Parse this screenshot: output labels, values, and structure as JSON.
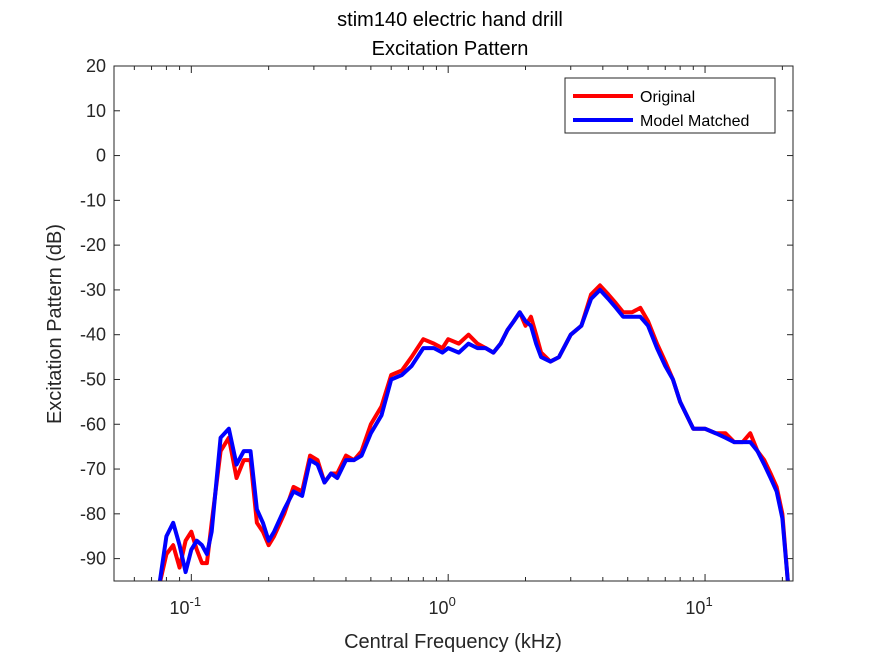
{
  "chart_data": {
    "type": "line",
    "title": "stim140 electric hand drill",
    "subtitle": "Excitation Pattern",
    "xlabel": "Central Frequency (kHz)",
    "ylabel": "Excitation Pattern (dB)",
    "xscale": "log",
    "xlim": [
      0.05,
      22
    ],
    "ylim": [
      -95,
      20
    ],
    "yticks": [
      20,
      10,
      0,
      -10,
      -20,
      -30,
      -40,
      -50,
      -60,
      -70,
      -80,
      -90
    ],
    "xticks": [
      {
        "value": 0.1,
        "base": "10",
        "exp": "-1"
      },
      {
        "value": 1,
        "base": "10",
        "exp": "0"
      },
      {
        "value": 10,
        "base": "10",
        "exp": "1"
      }
    ],
    "grid": false,
    "legend_position": "top-right",
    "series": [
      {
        "name": "Original",
        "color": "#ff0000",
        "x": [
          0.075,
          0.08,
          0.085,
          0.09,
          0.095,
          0.1,
          0.105,
          0.11,
          0.115,
          0.12,
          0.13,
          0.14,
          0.15,
          0.16,
          0.17,
          0.18,
          0.19,
          0.2,
          0.21,
          0.23,
          0.25,
          0.27,
          0.29,
          0.31,
          0.33,
          0.35,
          0.37,
          0.4,
          0.43,
          0.46,
          0.5,
          0.55,
          0.6,
          0.66,
          0.72,
          0.8,
          0.88,
          0.95,
          1.0,
          1.1,
          1.2,
          1.3,
          1.4,
          1.5,
          1.6,
          1.7,
          1.8,
          1.9,
          2.0,
          2.1,
          2.2,
          2.3,
          2.5,
          2.7,
          3.0,
          3.3,
          3.6,
          3.9,
          4.2,
          4.5,
          4.8,
          5.2,
          5.6,
          6.0,
          6.5,
          7.0,
          7.5,
          8.0,
          9.0,
          10.0,
          11.0,
          12.0,
          13.0,
          14.0,
          15.0,
          16.0,
          17.0,
          18.0,
          19.0,
          20.0,
          21.0
        ],
        "values": [
          -96,
          -89,
          -87,
          -92,
          -86,
          -84,
          -88,
          -91,
          -91,
          -82,
          -66,
          -63,
          -72,
          -68,
          -68,
          -82,
          -84,
          -87,
          -85,
          -80,
          -74,
          -75,
          -67,
          -68,
          -73,
          -71,
          -71,
          -67,
          -68,
          -66,
          -60,
          -56,
          -49,
          -48,
          -45,
          -41,
          -42,
          -43,
          -41,
          -42,
          -40,
          -42,
          -43,
          -44,
          -42,
          -39,
          -37,
          -35,
          -38,
          -36,
          -40,
          -44,
          -46,
          -45,
          -40,
          -38,
          -31,
          -29,
          -31,
          -33,
          -35,
          -35,
          -34,
          -37,
          -42,
          -46,
          -50,
          -55,
          -61,
          -61,
          -62,
          -62,
          -64,
          -64,
          -62,
          -66,
          -68,
          -71,
          -74,
          -80,
          -95
        ]
      },
      {
        "name": "Model Matched",
        "color": "#0000ff",
        "x": [
          0.075,
          0.08,
          0.085,
          0.09,
          0.095,
          0.1,
          0.105,
          0.11,
          0.115,
          0.12,
          0.13,
          0.14,
          0.15,
          0.16,
          0.17,
          0.18,
          0.19,
          0.2,
          0.21,
          0.23,
          0.25,
          0.27,
          0.29,
          0.31,
          0.33,
          0.35,
          0.37,
          0.4,
          0.43,
          0.46,
          0.5,
          0.55,
          0.6,
          0.66,
          0.72,
          0.8,
          0.88,
          0.95,
          1.0,
          1.1,
          1.2,
          1.3,
          1.4,
          1.5,
          1.6,
          1.7,
          1.8,
          1.9,
          2.0,
          2.1,
          2.2,
          2.3,
          2.5,
          2.7,
          3.0,
          3.3,
          3.6,
          3.9,
          4.2,
          4.5,
          4.8,
          5.2,
          5.6,
          6.0,
          6.5,
          7.0,
          7.5,
          8.0,
          9.0,
          10.0,
          11.0,
          12.0,
          13.0,
          14.0,
          15.0,
          16.0,
          17.0,
          18.0,
          19.0,
          20.0,
          21.0
        ],
        "values": [
          -96,
          -85,
          -82,
          -87,
          -93,
          -88,
          -86,
          -87,
          -89,
          -84,
          -63,
          -61,
          -69,
          -66,
          -66,
          -79,
          -82,
          -86,
          -84,
          -79,
          -75,
          -76,
          -68,
          -69,
          -73,
          -71,
          -72,
          -68,
          -68,
          -67,
          -62,
          -58,
          -50,
          -49,
          -47,
          -43,
          -43,
          -44,
          -43,
          -44,
          -42,
          -43,
          -43,
          -44,
          -42,
          -39,
          -37,
          -35,
          -37,
          -38,
          -42,
          -45,
          -46,
          -45,
          -40,
          -38,
          -32,
          -30,
          -32,
          -34,
          -36,
          -36,
          -36,
          -38,
          -43,
          -47,
          -50,
          -55,
          -61,
          -61,
          -62,
          -63,
          -64,
          -64,
          -64,
          -66,
          -69,
          -72,
          -75,
          -81,
          -95
        ]
      }
    ]
  }
}
